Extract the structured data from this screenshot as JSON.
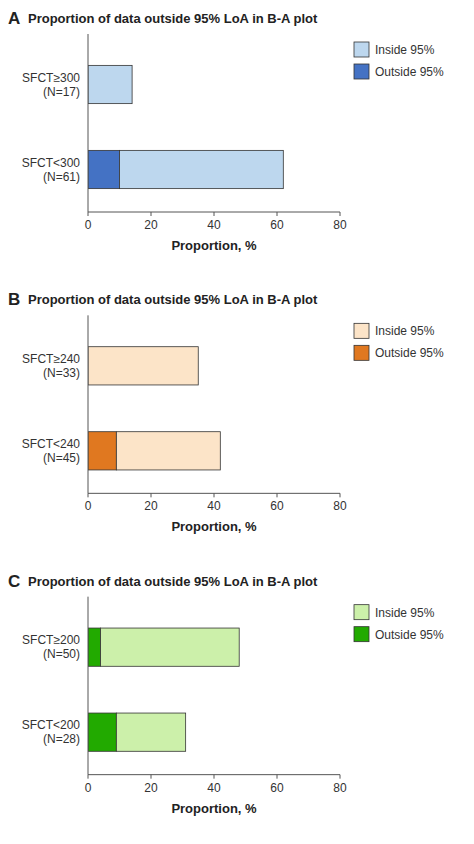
{
  "chart_data": [
    {
      "type": "bar",
      "orientation": "horizontal",
      "stacked": true,
      "grid": false,
      "legend": "right",
      "panel_label": "A",
      "title": "Proportion of data outside 95% LoA in B-A plot",
      "x_label": "Proportion, %",
      "categories": [
        "SFCT≥300\n(N=17)",
        "SFCT<300\n(N=61)"
      ],
      "series": [
        {
          "name": "Inside 95%",
          "color": "#bdd7ee",
          "values": [
            14,
            52
          ]
        },
        {
          "name": "Outside 95%",
          "color": "#4472c4",
          "values": [
            0,
            10
          ]
        }
      ],
      "xlim": [
        0,
        80
      ],
      "xticks": [
        0,
        20,
        40,
        60,
        80
      ]
    },
    {
      "type": "bar",
      "orientation": "horizontal",
      "stacked": true,
      "grid": false,
      "legend": "right",
      "panel_label": "B",
      "title": "Proportion of data outside 95% LoA in B-A plot",
      "x_label": "Proportion, %",
      "categories": [
        "SFCT≥240\n(N=33)",
        "SFCT<240\n(N=45)"
      ],
      "series": [
        {
          "name": "Inside 95%",
          "color": "#fce4c8",
          "values": [
            35,
            33
          ]
        },
        {
          "name": "Outside 95%",
          "color": "#e07820",
          "values": [
            0,
            9
          ]
        }
      ],
      "xlim": [
        0,
        80
      ],
      "xticks": [
        0,
        20,
        40,
        60,
        80
      ]
    },
    {
      "type": "bar",
      "orientation": "horizontal",
      "stacked": true,
      "grid": false,
      "legend": "right",
      "panel_label": "C",
      "title": "Proportion of data outside 95% LoA in B-A plot",
      "x_label": "Proportion, %",
      "categories": [
        "SFCT≥200\n(N=50)",
        "SFCT<200\n(N=28)"
      ],
      "series": [
        {
          "name": "Inside 95%",
          "color": "#ccf0aa",
          "values": [
            44,
            22
          ]
        },
        {
          "name": "Outside 95%",
          "color": "#22aa00",
          "values": [
            4,
            9
          ]
        }
      ],
      "xlim": [
        0,
        80
      ],
      "xticks": [
        0,
        20,
        40,
        60,
        80
      ]
    }
  ]
}
